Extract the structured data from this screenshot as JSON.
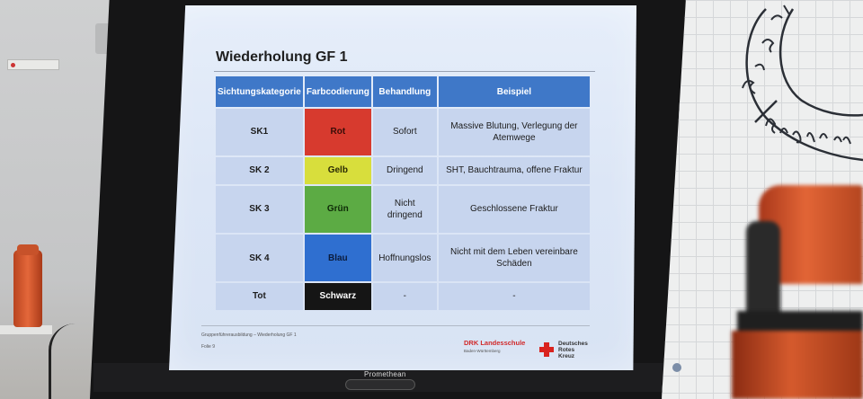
{
  "slide": {
    "title": "Wiederholung GF 1",
    "table": {
      "headers": [
        "Sichtungskategorie",
        "Farbcodierung",
        "Behandlung",
        "Beispiel"
      ],
      "rows": [
        {
          "category": "SK1",
          "color": "Rot",
          "color_hex": "#d73a2e",
          "treatment": "Sofort",
          "example": "Massive Blutung, Verlegung der Atemwege"
        },
        {
          "category": "SK 2",
          "color": "Gelb",
          "color_hex": "#d8de3c",
          "treatment": "Dringend",
          "example": "SHT, Bauchtrauma, offene Fraktur"
        },
        {
          "category": "SK 3",
          "color": "Grün",
          "color_hex": "#5cab44",
          "treatment": "Nicht dringend",
          "example": "Geschlossene Fraktur"
        },
        {
          "category": "SK 4",
          "color": "Blau",
          "color_hex": "#2f6fd0",
          "treatment": "Hoffnungslos",
          "example": "Nicht mit dem Leben vereinbare Schäden"
        },
        {
          "category": "Tot",
          "color": "Schwarz",
          "color_hex": "#151515",
          "treatment": "-",
          "example": "-"
        }
      ]
    },
    "footer": {
      "course": "Gruppenführerausbildung – Wiederholung GF 1",
      "page": "Folie 9",
      "logo_left_name": "DRK Landesschule",
      "logo_left_sub": "Baden-Württemberg",
      "logo_right_lines": [
        "Deutsches",
        "Rotes",
        "Kreuz"
      ]
    }
  },
  "monitor": {
    "brand": "Promethean"
  },
  "colors": {
    "header_blue": "#3f78c8",
    "cell_bg": "#c7d5ee",
    "screen_bg": "#e6eefa"
  }
}
